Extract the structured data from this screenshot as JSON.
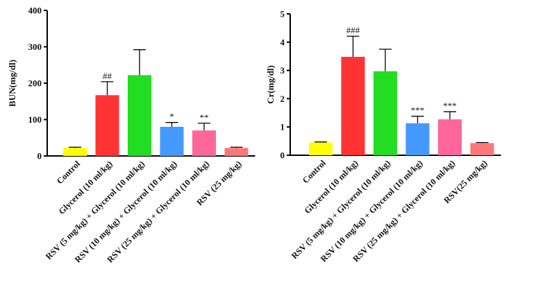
{
  "chart_data": [
    {
      "type": "bar",
      "ylabel": "BUN(mg/dl)",
      "ylim": [
        0,
        400
      ],
      "yticks": [
        0,
        100,
        200,
        300,
        400
      ],
      "categories": [
        "Control",
        "Glycerol (10 ml/kg)",
        "RSV (5 mg/kg) + Glycerol (10 ml/kg)",
        "RSV (10 mg/kg) + Glycerol (10 ml/kg)",
        "RSV (25 mg/kg) + Glycerol (10 ml/kg)",
        "RSV (25 mg/kg)"
      ],
      "values": [
        22,
        167,
        222,
        80,
        70,
        22
      ],
      "errors": [
        2,
        37,
        70,
        12,
        20,
        2
      ],
      "significance": [
        "",
        "##",
        "",
        "*",
        "**",
        ""
      ],
      "colors": [
        "#ffff00",
        "#ff3333",
        "#22dd22",
        "#4499ff",
        "#ff6699",
        "#ff7777"
      ]
    },
    {
      "type": "bar",
      "ylabel": "Cr(mg/dl)",
      "ylim": [
        0,
        5
      ],
      "yticks": [
        0,
        1,
        2,
        3,
        4,
        5
      ],
      "categories": [
        "Control",
        "Glycerol (10 ml/kg)",
        "RSV (5 mg/kg) + Glycerol (10 ml/kg)",
        "RSV (10 mg/kg) + Glycerol (10 ml/kg)",
        "RSV (25 mg/kg) + Glycerol (10 ml/kg)",
        "RSV(25 mg/kg)"
      ],
      "values": [
        0.45,
        3.48,
        2.97,
        1.13,
        1.27,
        0.43
      ],
      "errors": [
        0.02,
        0.73,
        0.78,
        0.25,
        0.27,
        0.02
      ],
      "significance": [
        "",
        "###",
        "",
        "***",
        "***",
        ""
      ],
      "colors": [
        "#ffff00",
        "#ff3333",
        "#22dd22",
        "#4499ff",
        "#ff6699",
        "#ff7777"
      ]
    }
  ]
}
